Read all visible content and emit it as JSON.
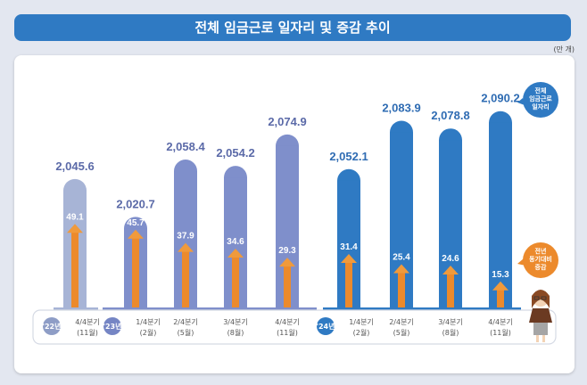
{
  "title": "전체 임금근로 일자리 및 증감 추이",
  "unit": "(만 개)",
  "chart_data": {
    "type": "bar",
    "title": "전체 임금근로 일자리 및 증감 추이",
    "unit": "만 개",
    "categories": [
      "4/4분기 (11월)",
      "1/4분기 (2월)",
      "2/4분기 (5월)",
      "3/4분기 (8월)",
      "4/4분기 (11월)",
      "1/4분기 (2월)",
      "2/4분기 (5월)",
      "3/4분기 (8월)",
      "4/4분기 (11월)"
    ],
    "quarters": [
      "4/4분기",
      "1/4분기",
      "2/4분기",
      "3/4분기",
      "4/4분기",
      "1/4분기",
      "2/4분기",
      "3/4분기",
      "4/4분기"
    ],
    "months": [
      "(11월)",
      "(2월)",
      "(5월)",
      "(8월)",
      "(11월)",
      "(2월)",
      "(5월)",
      "(8월)",
      "(11월)"
    ],
    "year_groups": [
      {
        "label": "'22년",
        "start": 0,
        "end": 0,
        "color": "#8e9dc6"
      },
      {
        "label": "'23년",
        "start": 1,
        "end": 4,
        "color": "#7585c4"
      },
      {
        "label": "'24년",
        "start": 5,
        "end": 8,
        "color": "#2f7ac3"
      }
    ],
    "series": [
      {
        "name": "전체 임금근로 일자리",
        "values": [
          2045.6,
          2020.7,
          2058.4,
          2054.2,
          2074.9,
          2052.1,
          2083.9,
          2078.8,
          2090.2
        ],
        "labels": [
          "2,045.6",
          "2,020.7",
          "2,058.4",
          "2,054.2",
          "2,074.9",
          "2,052.1",
          "2,083.9",
          "2,078.8",
          "2,090.2"
        ]
      },
      {
        "name": "전년 동기대비 증감",
        "values": [
          49.1,
          45.7,
          37.9,
          34.6,
          29.3,
          31.4,
          25.4,
          24.6,
          15.3
        ],
        "labels": [
          "49.1",
          "45.7",
          "37.9",
          "34.6",
          "29.3",
          "31.4",
          "25.4",
          "24.6",
          "15.3"
        ]
      }
    ],
    "legend": [
      {
        "label": "전체 임금근로 일자리",
        "color": "#2f7ac3"
      },
      {
        "label": "전년 동기대비 증감",
        "color": "#ec8a2c"
      }
    ]
  },
  "legend_bubble_total": [
    "전체",
    "임금근로",
    "일자리"
  ],
  "legend_bubble_change": [
    "전년",
    "동기대비",
    "증감"
  ]
}
